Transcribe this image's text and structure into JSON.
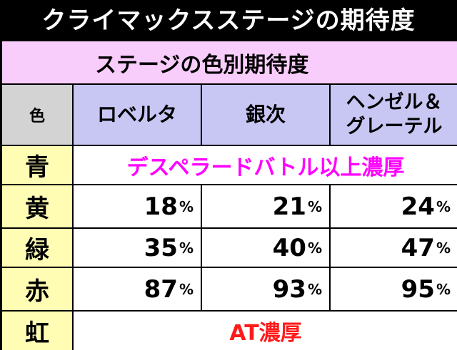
{
  "title": "クライマックスステージの期待度",
  "table": {
    "subtitle": "ステージの色別期待度",
    "color_header": "色",
    "characters": [
      {
        "line1": "ロベルタ",
        "line2": ""
      },
      {
        "line1": "銀次",
        "line2": ""
      },
      {
        "line1": "ヘンゼル＆",
        "line2": "グレーテル"
      }
    ],
    "rows": [
      {
        "color": "青",
        "span_text": "デスペラードバトル以上濃厚"
      },
      {
        "color": "黄",
        "values": [
          "18",
          "21",
          "24"
        ]
      },
      {
        "color": "緑",
        "values": [
          "35",
          "40",
          "47"
        ]
      },
      {
        "color": "赤",
        "values": [
          "87",
          "93",
          "95"
        ]
      },
      {
        "color": "虹",
        "span_text": "AT濃厚"
      }
    ],
    "percent_sign": "%"
  },
  "colors": {
    "subtitle_bg": "#f9cdfb",
    "header_bg": "#c8c6f3",
    "row_label_bg": "#fffcb4",
    "magenta_text": "#ff00ff",
    "red_text": "#ff1a1a"
  }
}
